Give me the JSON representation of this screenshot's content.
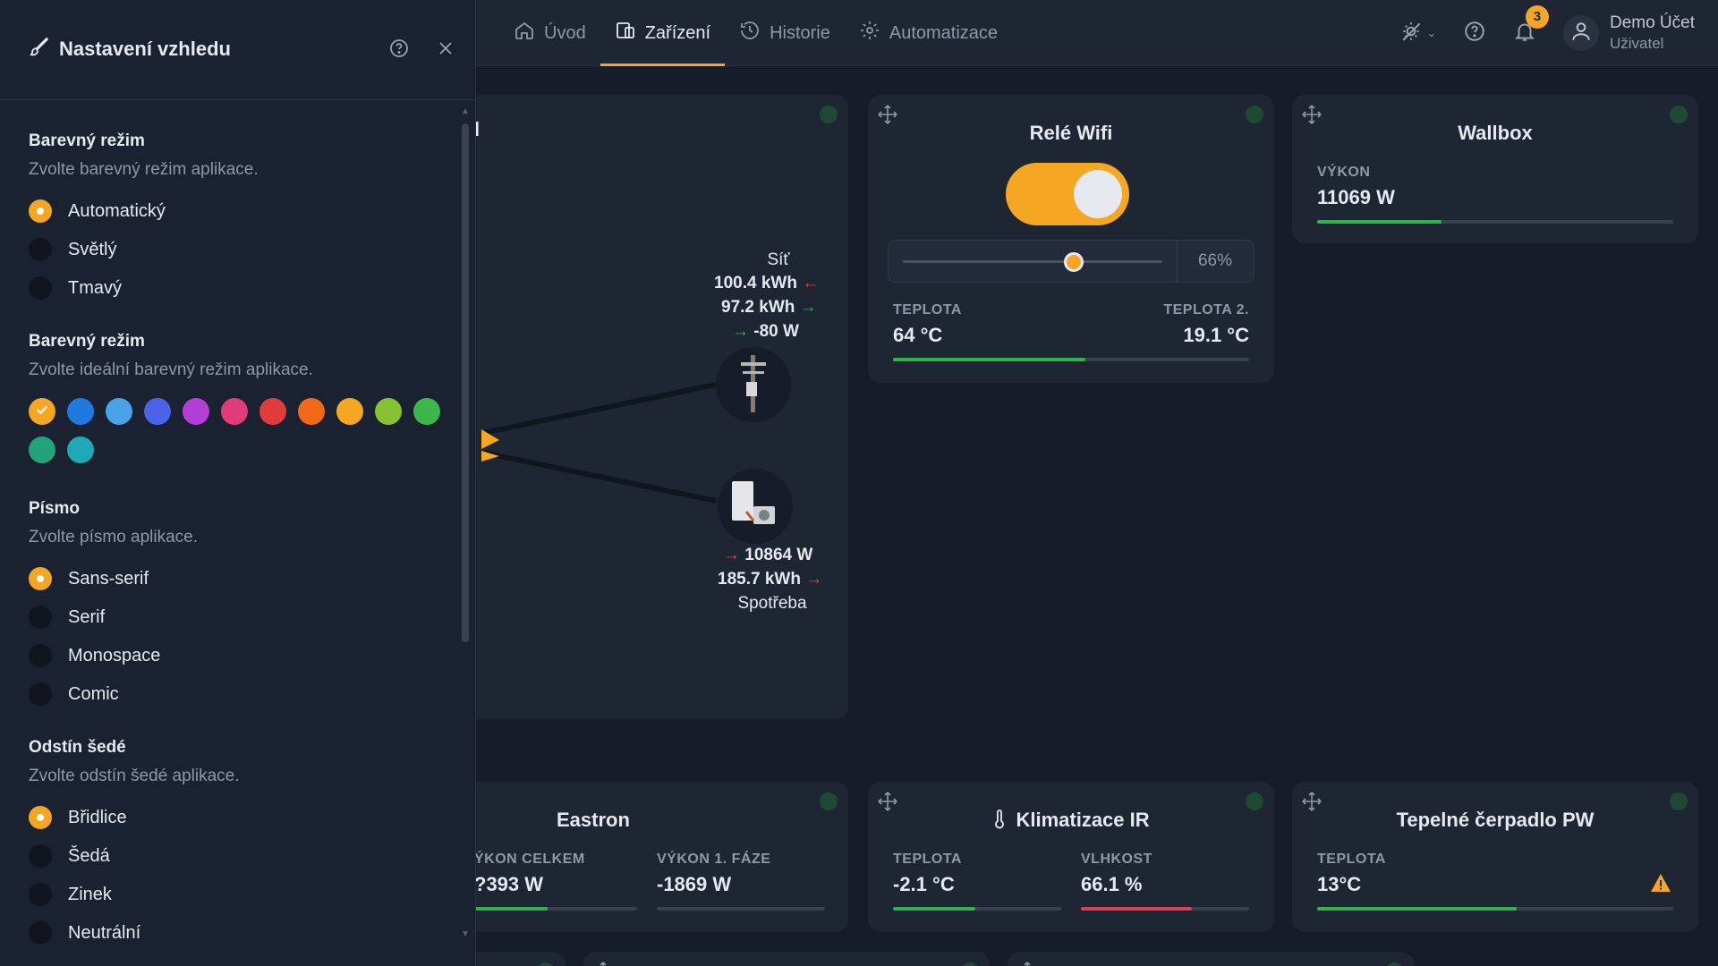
{
  "nav": {
    "tabs": [
      {
        "label": "Úvod",
        "icon": "home-icon"
      },
      {
        "label": "Zařízení",
        "icon": "devices-icon"
      },
      {
        "label": "Historie",
        "icon": "history-icon"
      },
      {
        "label": "Automatizace",
        "icon": "gear-icon"
      }
    ],
    "active_tab": 1,
    "notification_count": "3",
    "user": {
      "name": "Demo Účet",
      "role": "Uživatel"
    }
  },
  "colors": {
    "accent": "#f5a623",
    "green": "#2fb34a",
    "red": "#e04050"
  },
  "settings_panel": {
    "title": "Nastavení vzhledu",
    "sections": [
      {
        "title": "Barevný režim",
        "desc": "Zvolte barevný režim aplikace.",
        "options": [
          "Automatický",
          "Světlý",
          "Tmavý"
        ],
        "selected": 0
      },
      {
        "title": "Barevný režim",
        "desc": "Zvolte ideální barevný režim aplikace.",
        "swatches": [
          "#f5a623",
          "#1f7ae0",
          "#4aa3e8",
          "#4a63e8",
          "#b23ed6",
          "#e03c7a",
          "#e03c3c",
          "#f06a1a",
          "#f5a623",
          "#86c232",
          "#3cb84a",
          "#23a37a",
          "#1fa8b5"
        ],
        "selected_swatch": 0
      },
      {
        "title": "Písmo",
        "desc": "Zvolte písmo aplikace.",
        "options": [
          "Sans-serif",
          "Serif",
          "Monospace",
          "Comic"
        ],
        "selected": 0
      },
      {
        "title": "Odstín šedé",
        "desc": "Zvolte odstín šedé aplikace.",
        "options": [
          "Břidlice",
          "Šedá",
          "Zinek",
          "Neutrální"
        ],
        "selected": 0
      }
    ]
  },
  "energy_flow": {
    "grid": {
      "label": "Síť",
      "import": "100.4 kWh",
      "export": "97.2 kWh",
      "power": "-80 W"
    },
    "consumption": {
      "label": "Spotřeba",
      "power": "10864 W",
      "energy": "185.7 kWh"
    },
    "partial_title": "l"
  },
  "rele_wifi": {
    "title": "Relé Wifi",
    "toggle_on": true,
    "slider_percent": 66,
    "slider_label": "66%",
    "temp1": {
      "label": "TEPLOTA",
      "value": "64 °C"
    },
    "temp2": {
      "label": "TEPLOTA 2.",
      "value": "19.1 °C"
    },
    "bar_fraction": 0.54
  },
  "wallbox": {
    "title": "Wallbox",
    "label": "VÝKON",
    "value": "11069 W",
    "bar_fraction": 0.35
  },
  "eastron": {
    "title": "Eastron",
    "m1": {
      "label": "ÝKON CELKEM",
      "value": "?393 W",
      "bar_fraction": 0.45
    },
    "m2": {
      "label": "VÝKON 1. FÁZE",
      "value": "-1869 W",
      "bar_fraction": 0.0
    }
  },
  "klimatizace": {
    "title": "Klimatizace IR",
    "m1": {
      "label": "TEPLOTA",
      "value": "-2.1 °C",
      "bar_fraction": 0.49
    },
    "m2": {
      "label": "VLHKOST",
      "value": "66.1 %",
      "bar_fraction": 0.66
    }
  },
  "tepelne": {
    "title": "Tepelné čerpadlo PW",
    "label": "TEPLOTA",
    "value": "13°C",
    "bar_fraction": 0.56
  }
}
